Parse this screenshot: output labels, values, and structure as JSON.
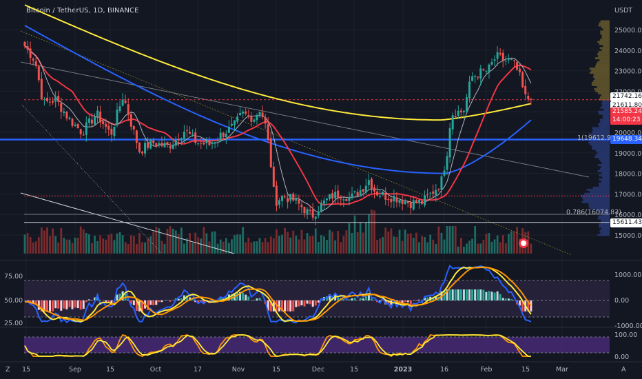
{
  "header": {
    "title": "Bitcoin / TetherUS, 1D, BINANCE",
    "currency": "USDT"
  },
  "colors": {
    "bg": "#131722",
    "up": "#26a69a",
    "down": "#ef5350",
    "ma20": "#b2b5be",
    "ma50": "#f23645",
    "ma100": "#2962ff",
    "ma200": "#ffeb3b",
    "stochK": "#ff9800",
    "stochD": "#ffeb3b"
  },
  "price_axis": {
    "ticks": [
      "25000.00",
      "24000.00",
      "23000.00",
      "22000.00",
      "21000.00",
      "20000.00",
      "19000.00",
      "18000.00",
      "17000.00",
      "16000.00",
      "15000.00"
    ]
  },
  "price_labels": [
    {
      "text": "21742.16",
      "bg": "#ffffff",
      "fg": "#131722"
    },
    {
      "text": "21611.80",
      "bg": "#ffffff",
      "fg": "#131722"
    },
    {
      "text": "21585.24",
      "bg": "#f23645",
      "fg": "#ffffff"
    },
    {
      "text": "14:00:23",
      "bg": "#f23645",
      "fg": "#ffffff"
    },
    {
      "text": "19648.34",
      "bg": "#2962ff",
      "fg": "#ffffff"
    },
    {
      "text": "15611.43",
      "bg": "#ffffff",
      "fg": "#131722"
    }
  ],
  "fib_labels": {
    "top": "1(19612.92)",
    "bottom": "0.786(16074.83)"
  },
  "osc1_axis": {
    "left": [
      "75.00",
      "50.00",
      "25.00"
    ],
    "right": [
      "1000.00",
      "0.00",
      "-1000.00"
    ]
  },
  "osc2_axis": {
    "right": [
      "100.00",
      "0.00"
    ]
  },
  "time_axis": {
    "labels": [
      "15",
      "Sep",
      "15",
      "Oct",
      "17",
      "Nov",
      "15",
      "Dec",
      "15",
      "2023",
      "16",
      "Feb",
      "15",
      "Mar"
    ]
  },
  "chart_data": {
    "type": "candlestick",
    "symbol": "Bitcoin / TetherUS",
    "timeframe": "1D",
    "exchange": "BINANCE",
    "ylim": [
      15000,
      25500
    ],
    "levels": {
      "horizontal_blue": 19648.34,
      "fib_1": 19612.92,
      "fib_0786": 16074.83,
      "support": 15611.43,
      "last_price": 21585.24,
      "red_dotted": 16900
    },
    "key_closes": [
      {
        "date": "Aug 15",
        "close": 24200
      },
      {
        "date": "Aug 22",
        "close": 21400
      },
      {
        "date": "Sep 1",
        "close": 20100
      },
      {
        "date": "Sep 12",
        "close": 22300
      },
      {
        "date": "Sep 20",
        "close": 19000
      },
      {
        "date": "Oct 1",
        "close": 19400
      },
      {
        "date": "Oct 17",
        "close": 19500
      },
      {
        "date": "Oct 29",
        "close": 20800
      },
      {
        "date": "Nov 5",
        "close": 21200
      },
      {
        "date": "Nov 9",
        "close": 16600
      },
      {
        "date": "Nov 22",
        "close": 15900
      },
      {
        "date": "Dec 5",
        "close": 17100
      },
      {
        "date": "Dec 14",
        "close": 17800
      },
      {
        "date": "Dec 30",
        "close": 16550
      },
      {
        "date": "Jan 12",
        "close": 19000
      },
      {
        "date": "Jan 14",
        "close": 20900
      },
      {
        "date": "Jan 21",
        "close": 22700
      },
      {
        "date": "Jan 29",
        "close": 23800
      },
      {
        "date": "Feb 2",
        "close": 23700
      },
      {
        "date": "Feb 9",
        "close": 21600
      },
      {
        "date": "Feb 12",
        "close": 21585
      }
    ]
  }
}
